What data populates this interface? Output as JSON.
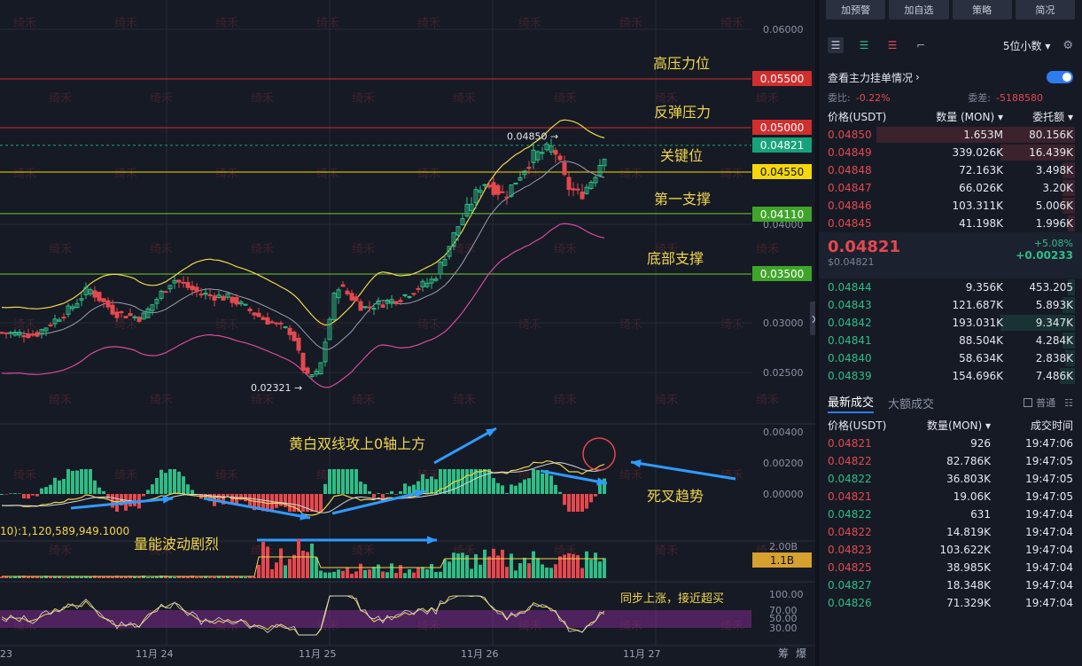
{
  "chart_data": {
    "type": "candlestick",
    "price_axis": {
      "ticks": [
        "0.06000",
        "0.05000",
        "0.04000",
        "0.03000",
        "0.02500"
      ],
      "ylim": [
        0.021,
        0.0615
      ]
    },
    "time_axis": {
      "labels": [
        "23",
        "11月 24",
        "11月 25",
        "11月 26",
        "11月 27"
      ]
    },
    "levels": [
      {
        "name": "高压力位",
        "price": "0.05500",
        "color": "#d22e2e"
      },
      {
        "name": "反弹压力",
        "price": "0.05000",
        "color": "#d22e2e"
      },
      {
        "name": "关键位",
        "price": "0.04821",
        "color": "#16a37a",
        "dashed": true
      },
      {
        "name": "第一支撑",
        "price": "0.04550",
        "color": "#f5d70c"
      },
      {
        "name": "底部支撑",
        "price": "0.04110",
        "color": "#6fcc2e"
      },
      {
        "name": "",
        "price": "0.03500",
        "color": "#6fcc2e"
      }
    ],
    "high_marker": "0.04850",
    "low_marker": "0.02321",
    "macd": {
      "ticks": [
        "0.00400",
        "0.00200",
        "0.00000"
      ],
      "annotations": [
        "黄白双线攻上0轴上方",
        "死叉趋势"
      ]
    },
    "volume": {
      "label": "10):1,120,589,949.1000",
      "ticks": [
        "2.00B"
      ],
      "current": "1.1B",
      "annotation": "量能波动剧烈"
    },
    "rsi": {
      "ticks": [
        "100.00",
        "70.00",
        "50.00",
        "30.00"
      ],
      "annotation": "同步上涨，接近超买"
    },
    "watermark": "绮禾",
    "corner_labels": [
      "筹",
      "爆"
    ]
  },
  "panel": {
    "buttons": [
      "加预警",
      "加自选",
      "策略",
      "简况"
    ],
    "decimals": "5位小数",
    "depth_title": "查看主力挂单情况",
    "ratio_label": "委比:",
    "ratio_value": "-0.22%",
    "diff_label": "委差:",
    "diff_value": "-5188580",
    "headers": {
      "price": "价格(USDT)",
      "qty": "数量 (MON)",
      "total": "委托额"
    },
    "asks": [
      {
        "price": "0.04850",
        "qty": "1.653M",
        "total": "80.156K",
        "fill": 0.8
      },
      {
        "price": "0.04849",
        "qty": "339.026K",
        "total": "16.439K",
        "fill": 0.3
      },
      {
        "price": "0.04848",
        "qty": "72.163K",
        "total": "3.498K",
        "fill": 0.05
      },
      {
        "price": "0.04847",
        "qty": "66.026K",
        "total": "3.20K",
        "fill": 0.05
      },
      {
        "price": "0.04846",
        "qty": "103.311K",
        "total": "5.006K",
        "fill": 0.05
      },
      {
        "price": "0.04845",
        "qty": "41.198K",
        "total": "1.996K",
        "fill": 0.03
      }
    ],
    "last_price": "0.04821",
    "last_price_sub": "$0.04821",
    "change_pct": "+5.08%",
    "change_abs": "+0.00233",
    "bids": [
      {
        "price": "0.04844",
        "qty": "9.356K",
        "total": "453.205",
        "fill": 0.03
      },
      {
        "price": "0.04843",
        "qty": "121.687K",
        "total": "5.893K",
        "fill": 0.05
      },
      {
        "price": "0.04842",
        "qty": "193.031K",
        "total": "9.347K",
        "fill": 0.3
      },
      {
        "price": "0.04841",
        "qty": "88.504K",
        "total": "4.284K",
        "fill": 0.05
      },
      {
        "price": "0.04840",
        "qty": "58.634K",
        "total": "2.838K",
        "fill": 0.04
      },
      {
        "price": "0.04839",
        "qty": "154.696K",
        "total": "7.486K",
        "fill": 0.06
      }
    ],
    "trade_tabs": [
      "最新成交",
      "大额成交"
    ],
    "trade_filter": "普通",
    "trade_headers": {
      "price": "价格(USDT)",
      "qty": "数量(MON)",
      "time": "成交时间"
    },
    "trades": [
      {
        "price": "0.04821",
        "qty": "926",
        "time": "19:47:06",
        "side": "sell"
      },
      {
        "price": "0.04822",
        "qty": "82.786K",
        "time": "19:47:05",
        "side": "sell"
      },
      {
        "price": "0.04822",
        "qty": "36.803K",
        "time": "19:47:05",
        "side": "buy"
      },
      {
        "price": "0.04821",
        "qty": "19.06K",
        "time": "19:47:05",
        "side": "sell"
      },
      {
        "price": "0.04822",
        "qty": "631",
        "time": "19:47:04",
        "side": "buy"
      },
      {
        "price": "0.04822",
        "qty": "14.819K",
        "time": "19:47:04",
        "side": "sell"
      },
      {
        "price": "0.04823",
        "qty": "103.622K",
        "time": "19:47:04",
        "side": "sell"
      },
      {
        "price": "0.04825",
        "qty": "38.985K",
        "time": "19:47:04",
        "side": "sell"
      },
      {
        "price": "0.04827",
        "qty": "18.348K",
        "time": "19:47:04",
        "side": "buy"
      },
      {
        "price": "0.04826",
        "qty": "71.329K",
        "time": "19:47:04",
        "side": "buy"
      }
    ]
  }
}
